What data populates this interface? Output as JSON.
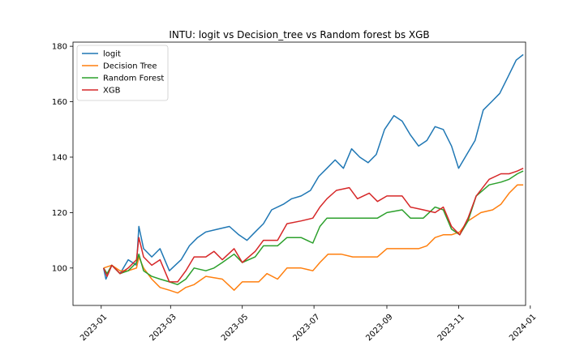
{
  "chart_data": {
    "type": "line",
    "title": "INTU: logit vs Decision_tree vs Random forest bs XGB",
    "xlabel": "",
    "ylabel": "",
    "xlim": [
      "2022-12-08",
      "2023-12-28"
    ],
    "ylim": [
      86.5,
      181.5
    ],
    "x_ticks": [
      "2023-01",
      "2023-03",
      "2023-05",
      "2023-07",
      "2023-09",
      "2023-11",
      "2024-01"
    ],
    "y_ticks": [
      100,
      120,
      140,
      160,
      180
    ],
    "grid": false,
    "legend_placement": "top-left",
    "series": [
      {
        "name": "logit",
        "color": "#1f77b4",
        "points": [
          [
            "2023-01-03",
            100
          ],
          [
            "2023-01-05",
            96
          ],
          [
            "2023-01-10",
            101
          ],
          [
            "2023-01-17",
            98
          ],
          [
            "2023-01-24",
            103
          ],
          [
            "2023-01-31",
            101
          ],
          [
            "2023-02-02",
            115
          ],
          [
            "2023-02-06",
            107
          ],
          [
            "2023-02-13",
            104
          ],
          [
            "2023-02-20",
            107
          ],
          [
            "2023-02-28",
            99
          ],
          [
            "2023-03-10",
            103
          ],
          [
            "2023-03-17",
            108
          ],
          [
            "2023-03-24",
            111
          ],
          [
            "2023-03-31",
            113
          ],
          [
            "2023-04-10",
            114
          ],
          [
            "2023-04-20",
            115
          ],
          [
            "2023-04-28",
            112
          ],
          [
            "2023-05-05",
            110
          ],
          [
            "2023-05-12",
            113
          ],
          [
            "2023-05-19",
            116
          ],
          [
            "2023-05-26",
            121
          ],
          [
            "2023-06-05",
            123
          ],
          [
            "2023-06-12",
            125
          ],
          [
            "2023-06-20",
            126
          ],
          [
            "2023-06-28",
            128
          ],
          [
            "2023-07-05",
            133
          ],
          [
            "2023-07-12",
            136
          ],
          [
            "2023-07-19",
            139
          ],
          [
            "2023-07-26",
            136
          ],
          [
            "2023-08-02",
            143
          ],
          [
            "2023-08-09",
            140
          ],
          [
            "2023-08-16",
            138
          ],
          [
            "2023-08-23",
            141
          ],
          [
            "2023-08-30",
            150
          ],
          [
            "2023-09-07",
            155
          ],
          [
            "2023-09-14",
            153
          ],
          [
            "2023-09-21",
            148
          ],
          [
            "2023-09-28",
            144
          ],
          [
            "2023-10-05",
            146
          ],
          [
            "2023-10-12",
            151
          ],
          [
            "2023-10-19",
            150
          ],
          [
            "2023-10-26",
            144
          ],
          [
            "2023-11-01",
            136
          ],
          [
            "2023-11-08",
            141
          ],
          [
            "2023-11-15",
            146
          ],
          [
            "2023-11-22",
            157
          ],
          [
            "2023-11-29",
            160
          ],
          [
            "2023-12-06",
            163
          ],
          [
            "2023-12-13",
            169
          ],
          [
            "2023-12-20",
            175
          ],
          [
            "2023-12-26",
            177
          ]
        ]
      },
      {
        "name": "Decision Tree",
        "color": "#ff7f0e",
        "points": [
          [
            "2023-01-03",
            100
          ],
          [
            "2023-01-10",
            101
          ],
          [
            "2023-01-17",
            99
          ],
          [
            "2023-01-24",
            99
          ],
          [
            "2023-01-31",
            100
          ],
          [
            "2023-02-02",
            104
          ],
          [
            "2023-02-06",
            100
          ],
          [
            "2023-02-13",
            96
          ],
          [
            "2023-02-20",
            93
          ],
          [
            "2023-02-28",
            92
          ],
          [
            "2023-03-07",
            91
          ],
          [
            "2023-03-14",
            93
          ],
          [
            "2023-03-21",
            94
          ],
          [
            "2023-03-31",
            97
          ],
          [
            "2023-04-14",
            96
          ],
          [
            "2023-04-24",
            92
          ],
          [
            "2023-05-01",
            95
          ],
          [
            "2023-05-15",
            95
          ],
          [
            "2023-05-22",
            98
          ],
          [
            "2023-05-31",
            96
          ],
          [
            "2023-06-08",
            100
          ],
          [
            "2023-06-20",
            100
          ],
          [
            "2023-06-30",
            99
          ],
          [
            "2023-07-06",
            102
          ],
          [
            "2023-07-13",
            105
          ],
          [
            "2023-07-24",
            105
          ],
          [
            "2023-08-03",
            104
          ],
          [
            "2023-08-14",
            104
          ],
          [
            "2023-08-24",
            104
          ],
          [
            "2023-09-01",
            107
          ],
          [
            "2023-09-18",
            107
          ],
          [
            "2023-09-28",
            107
          ],
          [
            "2023-10-05",
            108
          ],
          [
            "2023-10-12",
            111
          ],
          [
            "2023-10-19",
            112
          ],
          [
            "2023-10-26",
            112
          ],
          [
            "2023-11-02",
            113
          ],
          [
            "2023-11-09",
            117
          ],
          [
            "2023-11-20",
            120
          ],
          [
            "2023-11-30",
            121
          ],
          [
            "2023-12-07",
            123
          ],
          [
            "2023-12-14",
            127
          ],
          [
            "2023-12-21",
            130
          ],
          [
            "2023-12-26",
            130
          ]
        ]
      },
      {
        "name": "Random Forest",
        "color": "#2ca02c",
        "points": [
          [
            "2023-01-03",
            100
          ],
          [
            "2023-01-06",
            98
          ],
          [
            "2023-01-10",
            101
          ],
          [
            "2023-01-17",
            98
          ],
          [
            "2023-01-24",
            99
          ],
          [
            "2023-01-31",
            102
          ],
          [
            "2023-02-02",
            105
          ],
          [
            "2023-02-06",
            99
          ],
          [
            "2023-02-13",
            97
          ],
          [
            "2023-02-20",
            96
          ],
          [
            "2023-02-28",
            95
          ],
          [
            "2023-03-07",
            94
          ],
          [
            "2023-03-14",
            96
          ],
          [
            "2023-03-21",
            100
          ],
          [
            "2023-03-31",
            99
          ],
          [
            "2023-04-07",
            100
          ],
          [
            "2023-04-14",
            102
          ],
          [
            "2023-04-24",
            105
          ],
          [
            "2023-05-01",
            102
          ],
          [
            "2023-05-12",
            104
          ],
          [
            "2023-05-19",
            108
          ],
          [
            "2023-05-31",
            108
          ],
          [
            "2023-06-08",
            111
          ],
          [
            "2023-06-20",
            111
          ],
          [
            "2023-06-30",
            109
          ],
          [
            "2023-07-06",
            115
          ],
          [
            "2023-07-12",
            118
          ],
          [
            "2023-07-31",
            118
          ],
          [
            "2023-08-14",
            118
          ],
          [
            "2023-08-24",
            118
          ],
          [
            "2023-09-01",
            120
          ],
          [
            "2023-09-14",
            121
          ],
          [
            "2023-09-21",
            118
          ],
          [
            "2023-10-02",
            118
          ],
          [
            "2023-10-12",
            122
          ],
          [
            "2023-10-19",
            121
          ],
          [
            "2023-10-26",
            114
          ],
          [
            "2023-11-02",
            112
          ],
          [
            "2023-11-09",
            117
          ],
          [
            "2023-11-16",
            126
          ],
          [
            "2023-11-27",
            130
          ],
          [
            "2023-12-07",
            131
          ],
          [
            "2023-12-14",
            132
          ],
          [
            "2023-12-21",
            134
          ],
          [
            "2023-12-26",
            135
          ]
        ]
      },
      {
        "name": "XGB",
        "color": "#d62728",
        "points": [
          [
            "2023-01-03",
            100
          ],
          [
            "2023-01-06",
            97
          ],
          [
            "2023-01-10",
            101
          ],
          [
            "2023-01-17",
            98
          ],
          [
            "2023-01-24",
            100
          ],
          [
            "2023-01-31",
            103
          ],
          [
            "2023-02-02",
            111
          ],
          [
            "2023-02-06",
            104
          ],
          [
            "2023-02-13",
            101
          ],
          [
            "2023-02-20",
            103
          ],
          [
            "2023-02-28",
            95
          ],
          [
            "2023-03-07",
            95
          ],
          [
            "2023-03-14",
            99
          ],
          [
            "2023-03-21",
            104
          ],
          [
            "2023-03-31",
            104
          ],
          [
            "2023-04-07",
            106
          ],
          [
            "2023-04-14",
            103
          ],
          [
            "2023-04-24",
            107
          ],
          [
            "2023-05-01",
            102
          ],
          [
            "2023-05-12",
            106
          ],
          [
            "2023-05-19",
            110
          ],
          [
            "2023-05-31",
            110
          ],
          [
            "2023-06-08",
            116
          ],
          [
            "2023-06-20",
            117
          ],
          [
            "2023-06-30",
            118
          ],
          [
            "2023-07-06",
            122
          ],
          [
            "2023-07-12",
            125
          ],
          [
            "2023-07-20",
            128
          ],
          [
            "2023-07-31",
            129
          ],
          [
            "2023-08-07",
            125
          ],
          [
            "2023-08-17",
            127
          ],
          [
            "2023-08-24",
            124
          ],
          [
            "2023-09-01",
            126
          ],
          [
            "2023-09-14",
            126
          ],
          [
            "2023-09-21",
            122
          ],
          [
            "2023-10-02",
            121
          ],
          [
            "2023-10-12",
            120
          ],
          [
            "2023-10-19",
            122
          ],
          [
            "2023-10-26",
            115
          ],
          [
            "2023-11-02",
            112
          ],
          [
            "2023-11-09",
            118
          ],
          [
            "2023-11-16",
            126
          ],
          [
            "2023-11-27",
            132
          ],
          [
            "2023-12-07",
            134
          ],
          [
            "2023-12-14",
            134
          ],
          [
            "2023-12-21",
            135
          ],
          [
            "2023-12-26",
            136
          ]
        ]
      }
    ]
  }
}
